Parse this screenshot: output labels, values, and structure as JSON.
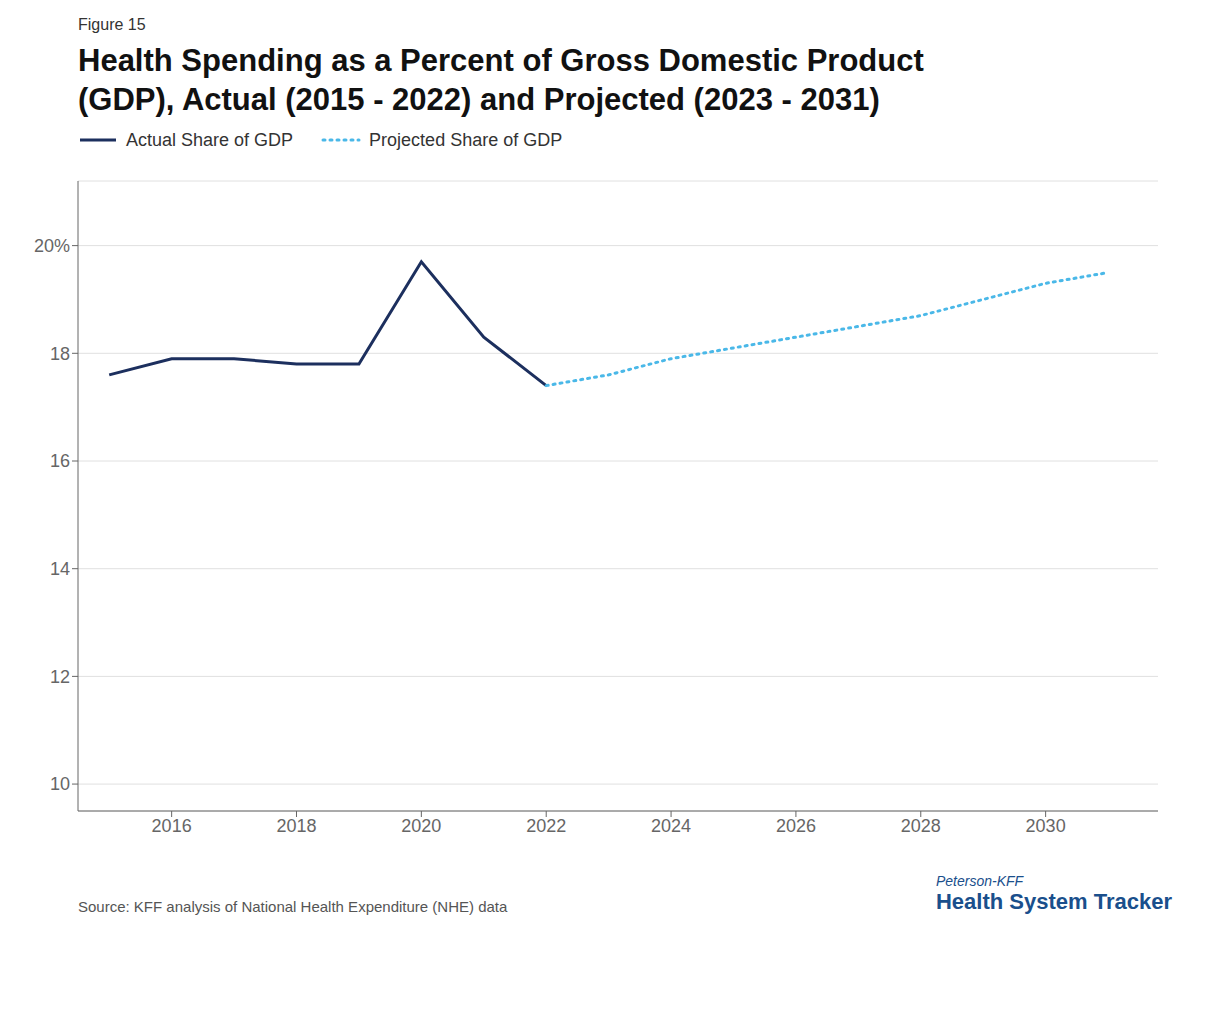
{
  "chart_data": {
    "type": "line",
    "title": "Health Spending as a Percent of Gross Domestic Product\n(GDP), Actual (2015 - 2022) and Projected (2023 - 2031)",
    "annotations": [
      "Figure 15",
      "Source: KFF analysis of National Health Expenditure (NHE) data",
      "Peterson-KFF",
      "Health System Tracker"
    ],
    "series": [
      {
        "name": "Actual Share of GDP",
        "color": "#1c2f5e",
        "line_style": "solid",
        "marker": "none",
        "x": [
          2015,
          2016,
          2017,
          2018,
          2019,
          2020,
          2021,
          2022
        ],
        "values": [
          17.6,
          17.9,
          17.9,
          17.8,
          17.8,
          19.7,
          18.3,
          17.4
        ]
      },
      {
        "name": "Projected Share of GDP",
        "color": "#4ab8e8",
        "line_style": "dotted",
        "marker": "none",
        "x": [
          2022,
          2023,
          2024,
          2025,
          2026,
          2027,
          2028,
          2029,
          2030,
          2031
        ],
        "values": [
          17.4,
          17.6,
          17.9,
          18.1,
          18.3,
          18.5,
          18.7,
          19.0,
          19.3,
          19.5
        ]
      }
    ],
    "xlim": [
      2014.5,
      2031.8
    ],
    "xticks": [
      2016,
      2018,
      2020,
      2022,
      2024,
      2026,
      2028,
      2030
    ],
    "ylim": [
      9.5,
      21.2
    ],
    "yticks": [
      10,
      12,
      14,
      16,
      18,
      {
        "value": 20,
        "label": "20%"
      }
    ],
    "grid": "y",
    "legend": "upper left"
  }
}
